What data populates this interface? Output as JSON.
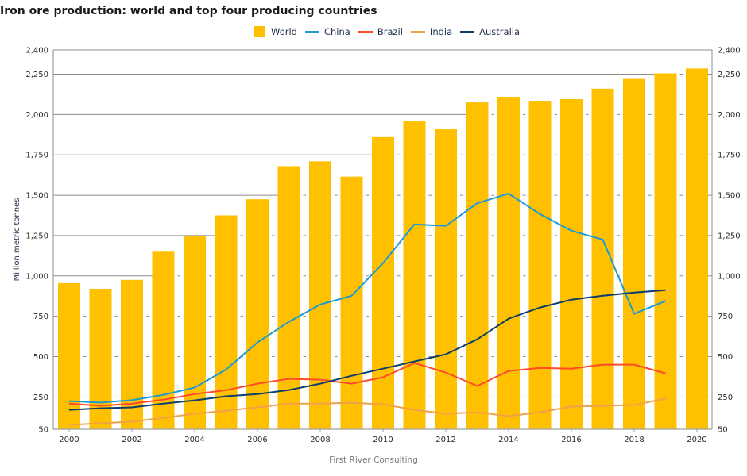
{
  "chart_data": {
    "type": "bar",
    "title": "Iron ore production: world and top four producing countries",
    "xlabel": "",
    "ylabel": "Million metric tonnes",
    "ylim": [
      50,
      2400
    ],
    "yticks": [
      50,
      250,
      500,
      750,
      1000,
      1250,
      1500,
      1750,
      2000,
      2250,
      2400
    ],
    "ytick_labels": [
      "50",
      "250",
      "500",
      "750",
      "1,000",
      "1,250",
      "1,500",
      "1,750",
      "2,000",
      "2,250",
      "2,400"
    ],
    "x": [
      2000,
      2001,
      2002,
      2003,
      2004,
      2005,
      2006,
      2007,
      2008,
      2009,
      2010,
      2011,
      2012,
      2013,
      2014,
      2015,
      2016,
      2017,
      2018,
      2019,
      2020
    ],
    "xtick_labels": [
      "2000",
      "2002",
      "2004",
      "2006",
      "2008",
      "2010",
      "2012",
      "2014",
      "2016",
      "2018",
      "2020"
    ],
    "grid": true,
    "secondary_y_axis_mirrored": true,
    "legend_position": "top-center",
    "series": [
      {
        "name": "World",
        "kind": "bar",
        "color": "#FFC000",
        "values": [
          955,
          920,
          975,
          1150,
          1245,
          1375,
          1475,
          1680,
          1710,
          1615,
          1860,
          1960,
          1910,
          2075,
          2110,
          2085,
          2095,
          2160,
          2225,
          2255,
          2285
        ]
      },
      {
        "name": "China",
        "kind": "line",
        "color": "#1B9AD6",
        "values": [
          224,
          215,
          230,
          263,
          308,
          420,
          588,
          715,
          823,
          877,
          1079,
          1320,
          1310,
          1450,
          1510,
          1383,
          1280,
          1225,
          765,
          845,
          null
        ]
      },
      {
        "name": "Brazil",
        "kind": "line",
        "color": "#FF4B2B",
        "values": [
          209,
          195,
          209,
          233,
          268,
          292,
          332,
          362,
          357,
          332,
          372,
          460,
          401,
          318,
          411,
          430,
          425,
          450,
          450,
          396,
          null
        ]
      },
      {
        "name": "India",
        "kind": "line",
        "color": "#EFA14B",
        "values": [
          77,
          87,
          97,
          121,
          146,
          165,
          185,
          209,
          209,
          214,
          204,
          170,
          146,
          155,
          131,
          155,
          190,
          195,
          200,
          240,
          null
        ]
      },
      {
        "name": "Australia",
        "kind": "line",
        "color": "#0D3E6B",
        "values": [
          170,
          180,
          185,
          209,
          229,
          254,
          268,
          293,
          332,
          381,
          425,
          470,
          514,
          607,
          735,
          804,
          853,
          877,
          897,
          912,
          null
        ]
      }
    ],
    "source": "First River Consulting"
  },
  "legend": [
    {
      "label": "World",
      "shape": "box",
      "color": "#FFC000"
    },
    {
      "label": "China",
      "shape": "line",
      "color": "#1B9AD6"
    },
    {
      "label": "Brazil",
      "shape": "line",
      "color": "#FF4B2B"
    },
    {
      "label": "India",
      "shape": "line",
      "color": "#EFA14B"
    },
    {
      "label": "Australia",
      "shape": "line",
      "color": "#0D3E6B"
    }
  ]
}
